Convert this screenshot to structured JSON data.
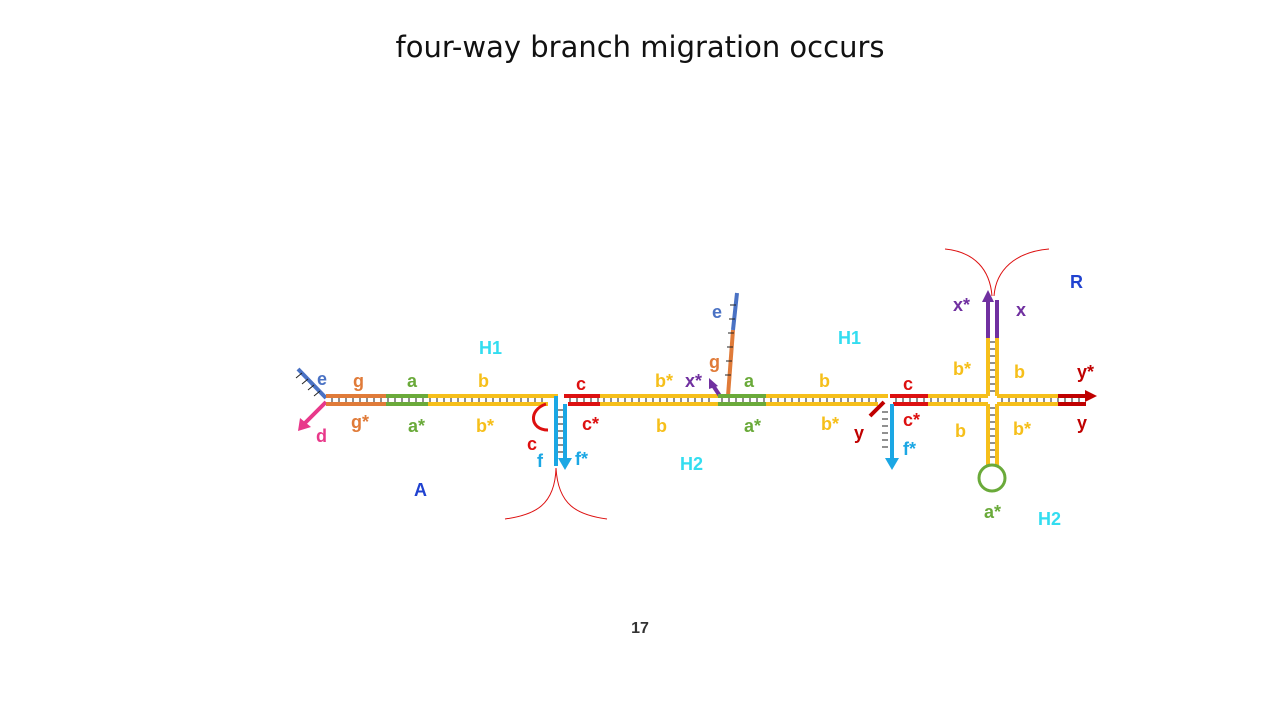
{
  "slide": {
    "title": "four-way branch migration occurs",
    "page_number": "17"
  },
  "colors": {
    "blue_e": "#4a72c4",
    "orange_g": "#e07b39",
    "green_a": "#6aaa3a",
    "yellow_b": "#f6bf1a",
    "red_c": "#dd1010",
    "cyan_f": "#1ba7e4",
    "pink_d": "#e8388a",
    "purple_x": "#7030a0",
    "darkred_y": "#c00000",
    "cyan_label": "#33ddf0",
    "blue_label": "#2042d0"
  },
  "diagram": {
    "left": {
      "e": "e",
      "g": "g",
      "a": "a",
      "b": "b",
      "d": "d",
      "g_star": "g*",
      "a_star": "a*",
      "b_star": "b*",
      "c_top": "c",
      "c_star": "c*",
      "c_loop": "c",
      "f": "f",
      "f_star": "f*"
    },
    "middle": {
      "b_star_top": "b*",
      "x_star": "x*",
      "g": "g",
      "e": "e",
      "b_bottom": "b",
      "h2": "H2",
      "a": "a",
      "a_star": "a*",
      "b": "b",
      "b_star": "b*"
    },
    "right": {
      "c_top": "c",
      "c_star": "c*",
      "y_left": "y",
      "f_star": "f*",
      "x_star": "x*",
      "x": "x",
      "b_star_top": "b*",
      "b_top": "b",
      "y_star": "y*",
      "y_right": "y",
      "b_bottom": "b",
      "b_star_bottom": "b*",
      "a_star": "a*",
      "h2": "H2"
    },
    "complex_labels": {
      "h1_left": "H1",
      "h1_right": "H1",
      "a": "A",
      "r": "R"
    }
  }
}
